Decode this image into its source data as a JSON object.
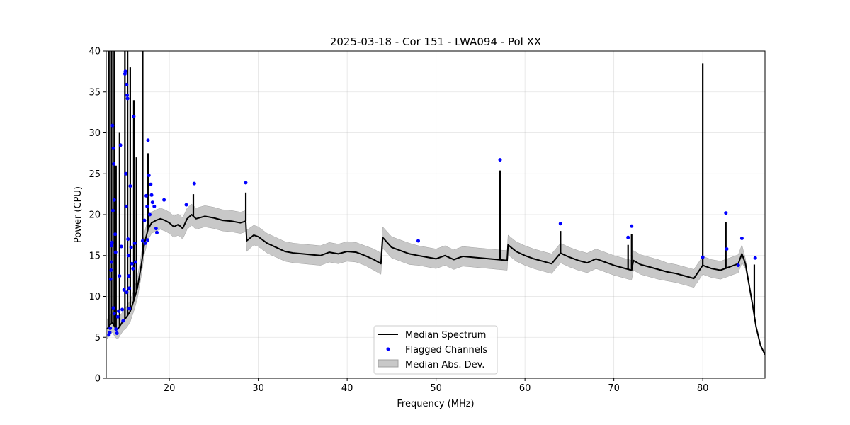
{
  "chart_data": {
    "type": "line",
    "title": "2025-03-18 - Cor 151 - LWA094 - Pol XX",
    "xlabel": "Frequency (MHz)",
    "ylabel": "Power (CPU)",
    "xlim": [
      12.9,
      87.0
    ],
    "ylim": [
      0,
      40
    ],
    "x_ticks": [
      20,
      30,
      40,
      50,
      60,
      70,
      80
    ],
    "y_ticks": [
      0,
      5,
      10,
      15,
      20,
      25,
      30,
      35,
      40
    ],
    "grid": true,
    "legend_position": "lower center",
    "colors": {
      "median": "#000000",
      "flagged": "#0000ff",
      "mad": "#c8c8c8",
      "mad_edge": "#a0a0a0"
    },
    "series": [
      {
        "name": "Median Spectrum",
        "kind": "line",
        "x": [
          13.0,
          13.3,
          13.6,
          13.9,
          14.2,
          14.5,
          14.8,
          15.2,
          15.6,
          16.0,
          16.4,
          16.8,
          17.2,
          17.6,
          18.0,
          18.5,
          19.0,
          19.5,
          20.0,
          20.5,
          21.0,
          21.5,
          22.0,
          22.5,
          23.0,
          24.0,
          25.0,
          26.0,
          27.0,
          28.0,
          28.6,
          28.7,
          29.5,
          30.0,
          31.0,
          32.0,
          33.0,
          34.0,
          35.0,
          36.0,
          37.0,
          38.0,
          39.0,
          40.0,
          41.0,
          42.0,
          43.0,
          43.8,
          44.0,
          45.0,
          46.0,
          47.0,
          48.0,
          49.0,
          50.0,
          51.0,
          52.0,
          53.0,
          54.0,
          55.0,
          56.0,
          57.0,
          58.0,
          58.1,
          59.0,
          60.0,
          61.0,
          62.0,
          63.0,
          64.0,
          65.0,
          66.0,
          67.0,
          68.0,
          69.0,
          70.0,
          71.0,
          72.0,
          72.2,
          73.0,
          74.0,
          75.0,
          76.0,
          77.0,
          78.0,
          79.0,
          80.0,
          81.0,
          82.0,
          83.0,
          84.0,
          84.4,
          84.8,
          85.2,
          85.6,
          86.0,
          86.5,
          87.0
        ],
        "y": [
          6.0,
          6.5,
          6.8,
          6.2,
          6.0,
          6.5,
          7.0,
          7.5,
          8.2,
          9.5,
          11.0,
          13.5,
          16.5,
          18.2,
          19.0,
          19.3,
          19.5,
          19.3,
          19.0,
          18.5,
          18.8,
          18.3,
          19.5,
          20.0,
          19.5,
          19.8,
          19.6,
          19.3,
          19.2,
          19.0,
          19.2,
          16.8,
          17.5,
          17.3,
          16.5,
          16.0,
          15.5,
          15.3,
          15.2,
          15.1,
          15.0,
          15.4,
          15.2,
          15.5,
          15.4,
          15.0,
          14.5,
          14.0,
          17.2,
          16.0,
          15.6,
          15.2,
          15.0,
          14.8,
          14.6,
          15.0,
          14.5,
          14.9,
          14.8,
          14.7,
          14.6,
          14.5,
          14.4,
          16.3,
          15.5,
          15.0,
          14.6,
          14.3,
          14.0,
          15.3,
          14.8,
          14.4,
          14.1,
          14.6,
          14.2,
          13.8,
          13.5,
          13.2,
          14.4,
          13.9,
          13.6,
          13.3,
          13.0,
          12.8,
          12.5,
          12.2,
          13.8,
          13.4,
          13.2,
          13.6,
          14.0,
          15.2,
          14.0,
          11.5,
          9.0,
          6.3,
          4.0,
          2.9
        ],
        "spikes": [
          [
            13.2,
            40
          ],
          [
            13.5,
            40
          ],
          [
            13.8,
            40
          ],
          [
            14.0,
            26
          ],
          [
            14.4,
            30
          ],
          [
            15.0,
            40
          ],
          [
            15.3,
            40
          ],
          [
            15.6,
            38
          ],
          [
            16.0,
            34
          ],
          [
            16.3,
            27
          ],
          [
            17.0,
            40
          ],
          [
            17.6,
            27.5
          ],
          [
            22.7,
            22.5
          ],
          [
            28.6,
            22.7
          ],
          [
            57.2,
            25.4
          ],
          [
            64.0,
            18.0
          ],
          [
            71.6,
            16.3
          ],
          [
            72.0,
            17.6
          ],
          [
            80.0,
            38.5
          ],
          [
            82.6,
            19.1
          ],
          [
            85.8,
            13.9
          ]
        ]
      },
      {
        "name": "Flagged Channels",
        "kind": "scatter",
        "points": [
          [
            13.2,
            5.3
          ],
          [
            13.3,
            5.6
          ],
          [
            13.35,
            6.1
          ],
          [
            13.4,
            12.1
          ],
          [
            13.45,
            13.2
          ],
          [
            13.5,
            14.2
          ],
          [
            13.5,
            16.2
          ],
          [
            13.55,
            16.6
          ],
          [
            13.6,
            30.9
          ],
          [
            13.65,
            20.5
          ],
          [
            13.7,
            28.1
          ],
          [
            13.75,
            26.2
          ],
          [
            13.8,
            21.8
          ],
          [
            13.9,
            17.6
          ],
          [
            13.95,
            15.4
          ],
          [
            13.7,
            8.6
          ],
          [
            13.8,
            7.9
          ],
          [
            14.0,
            6.0
          ],
          [
            14.1,
            5.5
          ],
          [
            14.2,
            7.5
          ],
          [
            14.3,
            8.2
          ],
          [
            14.4,
            12.5
          ],
          [
            14.5,
            28.5
          ],
          [
            14.6,
            16.1
          ],
          [
            14.7,
            8.4
          ],
          [
            14.8,
            7.0
          ],
          [
            14.9,
            10.8
          ],
          [
            15.0,
            37.2
          ],
          [
            15.05,
            37.5
          ],
          [
            15.1,
            25.0
          ],
          [
            15.15,
            21.0
          ],
          [
            15.2,
            35.9
          ],
          [
            15.25,
            34.6
          ],
          [
            15.3,
            34.2
          ],
          [
            15.35,
            17.0
          ],
          [
            15.4,
            15.0
          ],
          [
            15.45,
            12.5
          ],
          [
            15.5,
            11.0
          ],
          [
            15.6,
            23.5
          ],
          [
            15.7,
            16.0
          ],
          [
            15.8,
            14.0
          ],
          [
            15.9,
            13.4
          ],
          [
            16.0,
            32.0
          ],
          [
            16.1,
            16.5
          ],
          [
            16.2,
            14.2
          ],
          [
            15.5,
            8.5
          ],
          [
            15.2,
            10.5
          ],
          [
            17.0,
            16.8
          ],
          [
            17.2,
            19.3
          ],
          [
            17.3,
            16.5
          ],
          [
            17.4,
            22.3
          ],
          [
            17.5,
            21.0
          ],
          [
            17.55,
            16.9
          ],
          [
            17.6,
            29.1
          ],
          [
            17.7,
            24.8
          ],
          [
            17.8,
            20.0
          ],
          [
            17.9,
            23.7
          ],
          [
            18.0,
            22.4
          ],
          [
            18.1,
            21.5
          ],
          [
            18.3,
            21.0
          ],
          [
            18.5,
            18.3
          ],
          [
            18.6,
            17.8
          ],
          [
            19.4,
            21.8
          ],
          [
            21.9,
            21.2
          ],
          [
            22.8,
            23.8
          ],
          [
            28.6,
            23.9
          ],
          [
            48.0,
            16.8
          ],
          [
            57.2,
            26.7
          ],
          [
            64.0,
            18.9
          ],
          [
            71.6,
            17.2
          ],
          [
            72.0,
            18.6
          ],
          [
            80.0,
            14.8
          ],
          [
            82.6,
            20.2
          ],
          [
            82.7,
            15.8
          ],
          [
            84.0,
            13.8
          ],
          [
            84.4,
            17.1
          ],
          [
            85.9,
            14.7
          ]
        ]
      },
      {
        "name": "Median Abs. Dev.",
        "kind": "band",
        "half_width": [
          1.2,
          1.2,
          1.2,
          1.2,
          1.2,
          1.2,
          1.2,
          1.3,
          1.3,
          1.3,
          1.3,
          1.3,
          1.3,
          1.3,
          1.3,
          1.3,
          1.3,
          1.3,
          1.3,
          1.3,
          1.3,
          1.3,
          1.3,
          1.3,
          1.3,
          1.3,
          1.3,
          1.3,
          1.3,
          1.3,
          1.3,
          1.3,
          1.2,
          1.2,
          1.2,
          1.2,
          1.2,
          1.2,
          1.2,
          1.2,
          1.2,
          1.2,
          1.2,
          1.2,
          1.2,
          1.2,
          1.3,
          1.3,
          1.3,
          1.3,
          1.3,
          1.3,
          1.2,
          1.2,
          1.2,
          1.2,
          1.2,
          1.2,
          1.2,
          1.2,
          1.2,
          1.2,
          1.2,
          1.2,
          1.2,
          1.2,
          1.2,
          1.2,
          1.2,
          1.2,
          1.2,
          1.2,
          1.2,
          1.2,
          1.2,
          1.2,
          1.2,
          1.2,
          1.2,
          1.2,
          1.2,
          1.2,
          1.1,
          1.1,
          1.1,
          1.1,
          1.1,
          1.1,
          1.1,
          1.1,
          1.1,
          1.1,
          0.6,
          0.3,
          0.2,
          0.1,
          0.1,
          0.0
        ]
      }
    ]
  }
}
